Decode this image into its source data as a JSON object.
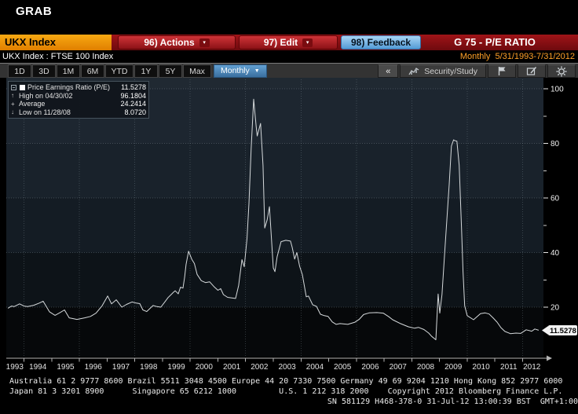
{
  "window": {
    "grab_label": "GRAB"
  },
  "command_bar": {
    "ticker": "UKX Index",
    "actions": "96) Actions",
    "edit": "97) Edit",
    "feedback": "98) Feedback",
    "screen_title": "G 75 - P/E RATIO"
  },
  "status_bar": {
    "description": "UKX Index : FTSE 100 Index",
    "period": "Monthly",
    "date_range": "5/31/1993-7/31/2012"
  },
  "toolbar": {
    "range_tabs": [
      "1D",
      "3D",
      "1M",
      "6M",
      "YTD",
      "1Y",
      "5Y",
      "Max"
    ],
    "period_selected": "Monthly",
    "collapse": "«",
    "security_study": "Security/Study"
  },
  "legend": {
    "series": "Price Earnings Ratio (P/E)",
    "series_value": "11.5278",
    "high_label": "High on 04/30/02",
    "high_value": "96.1804",
    "average_label": "Average",
    "average_value": "24.2414",
    "low_label": "Low on 11/28/08",
    "low_value": "8.0720"
  },
  "chart_data": {
    "type": "line",
    "title": "G 75 - P/E RATIO",
    "series_name": "Price Earnings Ratio (P/E)",
    "x_unit": "decimal_year_monthly",
    "x_range": [
      1993.417,
      2012.583
    ],
    "x_tick_years": [
      1993,
      1994,
      1995,
      1996,
      1997,
      1998,
      1999,
      2000,
      2001,
      2002,
      2003,
      2004,
      2005,
      2006,
      2007,
      2008,
      2009,
      2010,
      2011,
      2012
    ],
    "grid_years": [
      1994,
      1996,
      1998,
      2000,
      2002,
      2004,
      2006,
      2008,
      2010,
      2012
    ],
    "y_ticks": [
      20,
      40,
      60,
      80,
      100
    ],
    "y_minor_ticks": [
      30,
      50,
      70,
      90
    ],
    "legend_position": "top-left",
    "grid": true,
    "last_value": 11.5278,
    "last_value_label": "11.5278",
    "high": {
      "date": "04/30/02",
      "value": 96.1804
    },
    "low": {
      "date": "11/28/08",
      "value": 8.072
    },
    "average": 24.2414,
    "points": [
      [
        1993.42,
        19.6
      ],
      [
        1993.55,
        20.4
      ],
      [
        1993.64,
        20.2
      ],
      [
        1993.84,
        21.2
      ],
      [
        1994.0,
        20.4
      ],
      [
        1994.13,
        20.2
      ],
      [
        1994.35,
        20.7
      ],
      [
        1994.55,
        21.5
      ],
      [
        1994.69,
        22.2
      ],
      [
        1994.92,
        18.3
      ],
      [
        1995.12,
        17.0
      ],
      [
        1995.3,
        18.0
      ],
      [
        1995.46,
        19.0
      ],
      [
        1995.63,
        16.1
      ],
      [
        1995.78,
        15.8
      ],
      [
        1995.91,
        15.5
      ],
      [
        1996.05,
        15.8
      ],
      [
        1996.19,
        16.1
      ],
      [
        1996.4,
        16.6
      ],
      [
        1996.6,
        17.8
      ],
      [
        1996.82,
        20.5
      ],
      [
        1997.02,
        24.1
      ],
      [
        1997.16,
        21.2
      ],
      [
        1997.33,
        22.7
      ],
      [
        1997.53,
        20.0
      ],
      [
        1997.7,
        21.0
      ],
      [
        1997.9,
        21.9
      ],
      [
        1998.05,
        21.5
      ],
      [
        1998.18,
        21.3
      ],
      [
        1998.29,
        19.0
      ],
      [
        1998.43,
        18.4
      ],
      [
        1998.66,
        20.6
      ],
      [
        1998.8,
        20.2
      ],
      [
        1998.94,
        20.0
      ],
      [
        1999.09,
        22.0
      ],
      [
        1999.2,
        23.5
      ],
      [
        1999.31,
        24.6
      ],
      [
        1999.4,
        25.5
      ],
      [
        1999.46,
        26.0
      ],
      [
        1999.57,
        24.9
      ],
      [
        1999.65,
        27.3
      ],
      [
        1999.74,
        27.0
      ],
      [
        1999.8,
        31.0
      ],
      [
        1999.85,
        35.6
      ],
      [
        1999.94,
        40.5
      ],
      [
        2000.06,
        37.5
      ],
      [
        2000.15,
        36.0
      ],
      [
        2000.25,
        32.0
      ],
      [
        2000.4,
        29.7
      ],
      [
        2000.55,
        29.0
      ],
      [
        2000.7,
        29.3
      ],
      [
        2000.85,
        27.6
      ],
      [
        2001.0,
        26.2
      ],
      [
        2001.1,
        26.8
      ],
      [
        2001.2,
        24.6
      ],
      [
        2001.35,
        23.6
      ],
      [
        2001.5,
        23.4
      ],
      [
        2001.64,
        23.2
      ],
      [
        2001.75,
        28.0
      ],
      [
        2001.87,
        37.4
      ],
      [
        2001.95,
        34.8
      ],
      [
        2002.05,
        45.0
      ],
      [
        2002.12,
        58.0
      ],
      [
        2002.2,
        78.0
      ],
      [
        2002.29,
        96.18
      ],
      [
        2002.38,
        86.5
      ],
      [
        2002.42,
        82.7
      ],
      [
        2002.54,
        87.3
      ],
      [
        2002.63,
        72.0
      ],
      [
        2002.69,
        49.0
      ],
      [
        2002.78,
        52.0
      ],
      [
        2002.86,
        56.8
      ],
      [
        2003.0,
        34.4
      ],
      [
        2003.06,
        33.0
      ],
      [
        2003.14,
        38.5
      ],
      [
        2003.28,
        44.0
      ],
      [
        2003.45,
        44.5
      ],
      [
        2003.62,
        44.2
      ],
      [
        2003.68,
        42.0
      ],
      [
        2003.77,
        37.6
      ],
      [
        2003.85,
        40.0
      ],
      [
        2003.95,
        35.0
      ],
      [
        2004.05,
        31.9
      ],
      [
        2004.19,
        23.8
      ],
      [
        2004.27,
        24.1
      ],
      [
        2004.42,
        20.9
      ],
      [
        2004.56,
        20.3
      ],
      [
        2004.7,
        17.4
      ],
      [
        2004.84,
        16.9
      ],
      [
        2004.98,
        16.6
      ],
      [
        2005.13,
        14.6
      ],
      [
        2005.27,
        13.7
      ],
      [
        2005.41,
        14.0
      ],
      [
        2005.69,
        13.7
      ],
      [
        2005.95,
        14.5
      ],
      [
        2006.1,
        15.5
      ],
      [
        2006.26,
        17.3
      ],
      [
        2006.46,
        17.9
      ],
      [
        2006.74,
        18.0
      ],
      [
        2006.97,
        17.8
      ],
      [
        2007.17,
        16.5
      ],
      [
        2007.31,
        15.4
      ],
      [
        2007.59,
        14.0
      ],
      [
        2007.88,
        12.8
      ],
      [
        2008.1,
        12.3
      ],
      [
        2008.24,
        12.6
      ],
      [
        2008.44,
        11.8
      ],
      [
        2008.61,
        10.5
      ],
      [
        2008.72,
        9.3
      ],
      [
        2008.87,
        8.07
      ],
      [
        2008.95,
        24.8
      ],
      [
        2009.01,
        17.8
      ],
      [
        2009.09,
        24.6
      ],
      [
        2009.2,
        42.0
      ],
      [
        2009.35,
        65.0
      ],
      [
        2009.43,
        79.0
      ],
      [
        2009.51,
        81.3
      ],
      [
        2009.55,
        81.0
      ],
      [
        2009.63,
        80.8
      ],
      [
        2009.71,
        72.0
      ],
      [
        2009.8,
        48.0
      ],
      [
        2009.85,
        33.0
      ],
      [
        2009.91,
        20.5
      ],
      [
        2010.0,
        16.9
      ],
      [
        2010.23,
        15.4
      ],
      [
        2010.48,
        17.6
      ],
      [
        2010.65,
        17.9
      ],
      [
        2010.79,
        17.5
      ],
      [
        2010.94,
        16.0
      ],
      [
        2011.08,
        14.5
      ],
      [
        2011.22,
        12.5
      ],
      [
        2011.36,
        11.1
      ],
      [
        2011.56,
        10.3
      ],
      [
        2011.76,
        10.5
      ],
      [
        2011.93,
        10.4
      ],
      [
        2012.13,
        11.7
      ],
      [
        2012.33,
        11.2
      ],
      [
        2012.44,
        12.0
      ],
      [
        2012.58,
        11.5278
      ]
    ]
  },
  "footer": {
    "line1": "Australia 61 2 9777 8600 Brazil 5511 3048 4500 Europe 44 20 7330 7500 Germany 49 69 9204 1210 Hong Kong 852 2977 6000",
    "line2": "Japan 81 3 3201 8900      Singapore 65 6212 1000         U.S. 1 212 318 2000    Copyright 2012 Bloomberg Finance L.P.",
    "line3": "SN 581129 H468-378-0 31-Jul-12 13:00:39 BST  GMT+1:00"
  }
}
